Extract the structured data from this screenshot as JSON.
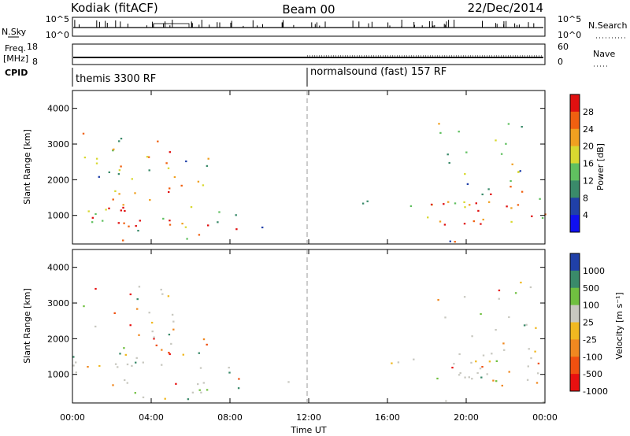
{
  "header": {
    "radar": "Kodiak (fitACF)",
    "beam": "Beam 00",
    "date": "22/Dec/2014"
  },
  "panels": {
    "nsky": {
      "left_label": "N.Sky",
      "right_label": "N.Search",
      "ticks": [
        "10^5",
        "10^0"
      ]
    },
    "freq": {
      "left_label_1": "Freq.",
      "left_label_2": "[MHz]",
      "left_ticks": [
        "18",
        "8"
      ],
      "right_label": "Nave",
      "right_ticks": [
        "60",
        "0"
      ]
    },
    "cpid": {
      "label": "CPID",
      "program_1": "themis 3300 RF",
      "program_2": "normalsound (fast) 157 RF"
    }
  },
  "colors": {
    "power": [
      "#1010f0",
      "#2040a8",
      "#3a8a6a",
      "#60c060",
      "#d8d830",
      "#f0a020",
      "#f06010",
      "#e01010"
    ],
    "velocity": [
      "#e81010",
      "#f05010",
      "#f08820",
      "#f0b820",
      "#c8c8c0",
      "#70c040",
      "#3a8a6a",
      "#2040a8"
    ]
  },
  "chart_data": [
    {
      "type": "heatmap",
      "title": "",
      "xlabel": "Time UT",
      "ylabel": "Slant Range [km]",
      "x_ticks": [
        "00:00",
        "04:00",
        "08:00",
        "12:00",
        "16:00",
        "20:00",
        "00:00"
      ],
      "y_ticks": [
        "1000",
        "2000",
        "3000",
        "4000"
      ],
      "ylim": [
        200,
        4500
      ],
      "colorbar_label": "Power [dB]",
      "colorbar_ticks": [
        "4",
        "8",
        "12",
        "16",
        "20",
        "24",
        "28"
      ],
      "color_scale": "power"
    },
    {
      "type": "heatmap",
      "title": "",
      "xlabel": "Time UT",
      "ylabel": "Slant Range [km]",
      "x_ticks": [
        "00:00",
        "04:00",
        "08:00",
        "12:00",
        "16:00",
        "20:00",
        "00:00"
      ],
      "y_ticks": [
        "1000",
        "2000",
        "3000",
        "4000"
      ],
      "ylim": [
        200,
        4500
      ],
      "colorbar_label": "Velocity [m s⁻¹]",
      "colorbar_ticks": [
        "1000",
        "500",
        "100",
        "25",
        "-25",
        "-100",
        "-500",
        "-1000"
      ],
      "color_scale": "velocity"
    }
  ],
  "time_axis": {
    "label": "Time UT"
  }
}
